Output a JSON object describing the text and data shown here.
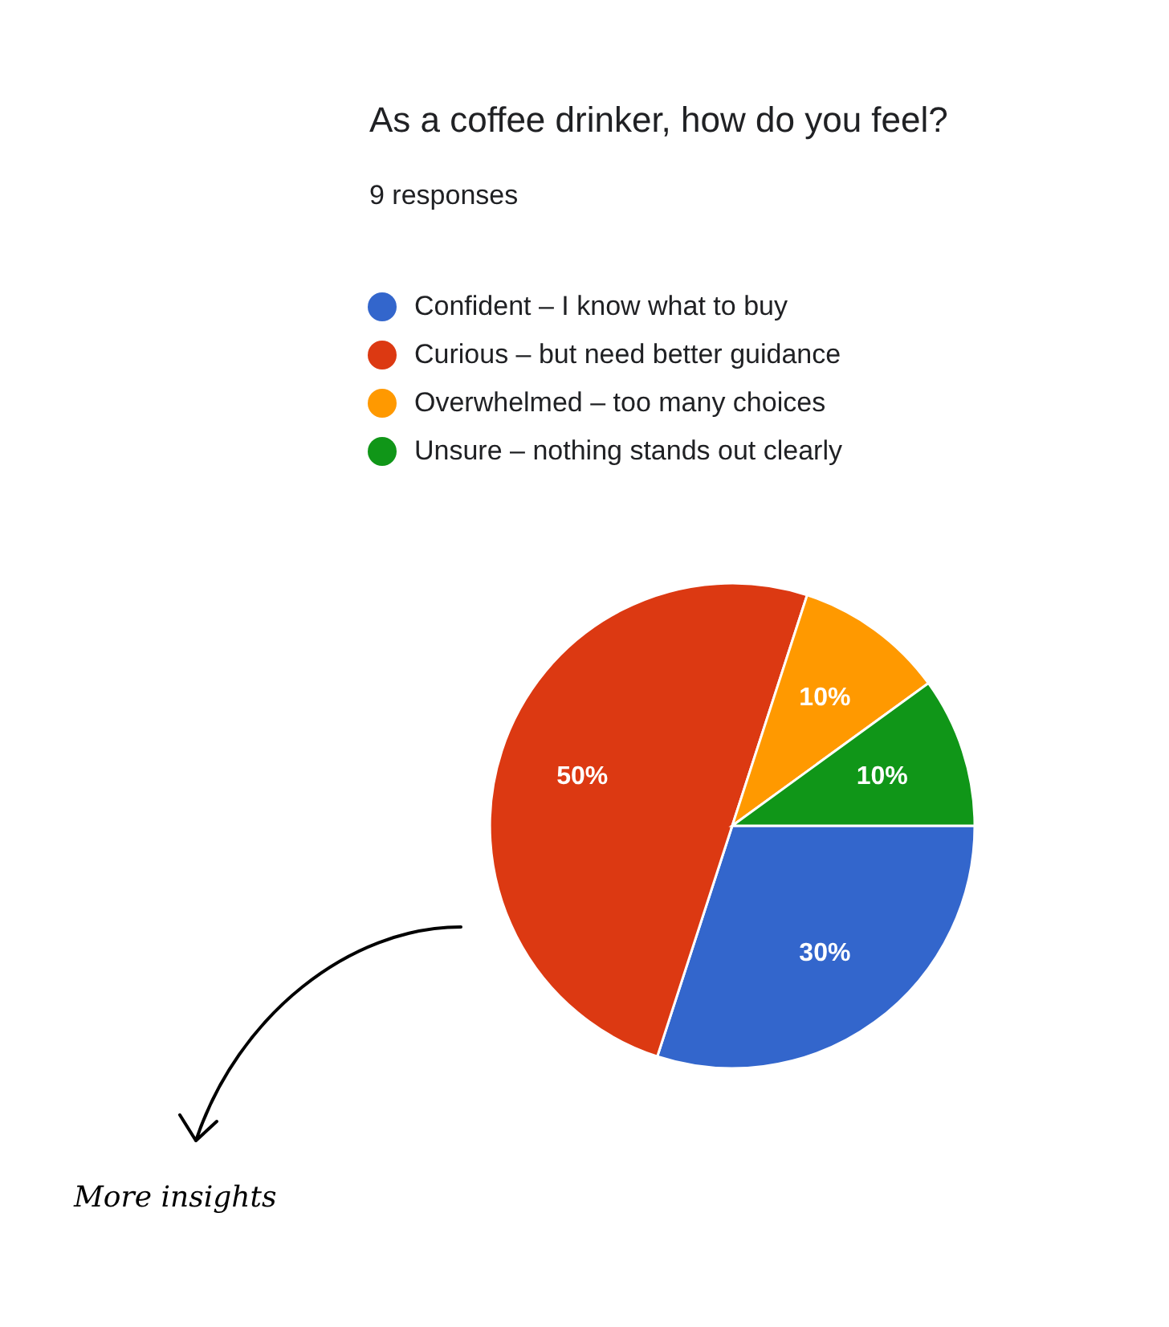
{
  "chart_data": {
    "type": "pie",
    "title": "As a coffee drinker, how do you feel?",
    "subtitle": "9 responses",
    "categories": [
      "Confident – I know what to buy",
      "Curious – but need better guidance",
      "Overwhelmed – too many choices",
      "Unsure – nothing stands out clearly"
    ],
    "values": [
      30,
      50,
      10,
      10
    ],
    "colors": [
      "#3366cc",
      "#dc3912",
      "#ff9900",
      "#109618"
    ],
    "value_labels": [
      "30%",
      "50%",
      "10%",
      "10%"
    ],
    "legend": "top",
    "annotations": [
      "More insights"
    ]
  }
}
